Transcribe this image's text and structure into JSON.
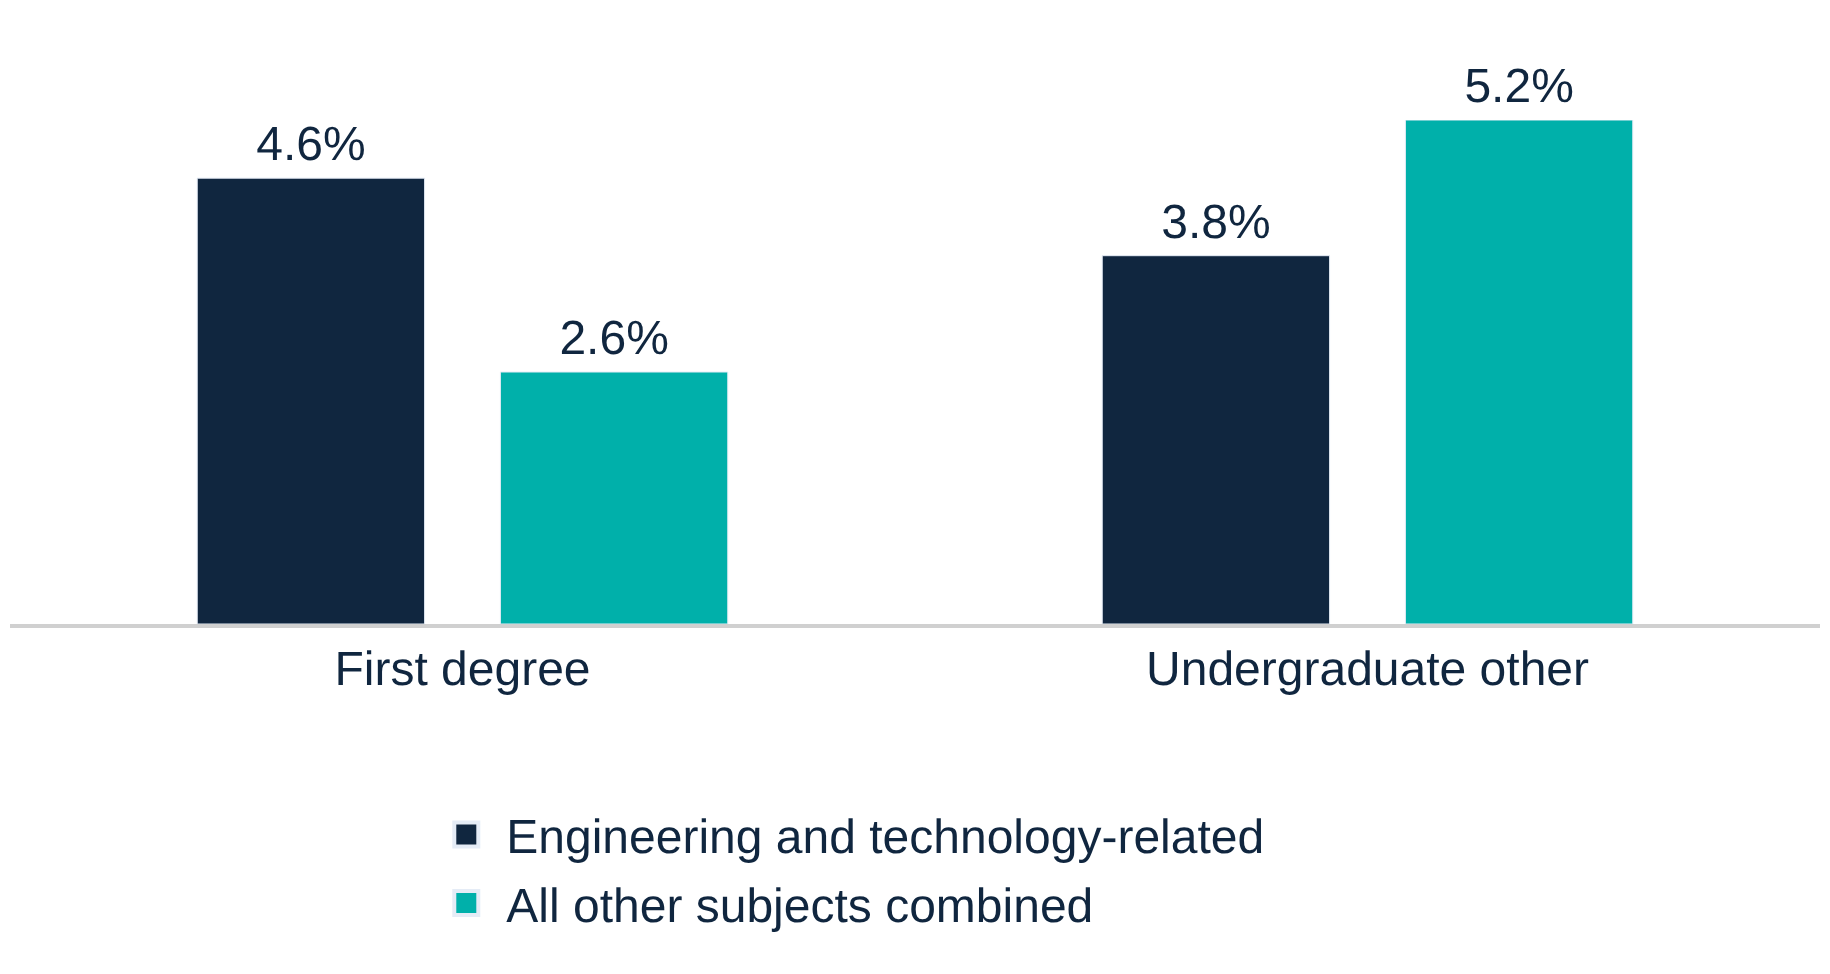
{
  "chart_data": {
    "type": "bar",
    "categories": [
      "First degree",
      "Undergraduate other"
    ],
    "series": [
      {
        "name": "Engineering and technology-related",
        "color": "#10263f",
        "values": [
          4.6,
          3.8
        ],
        "value_labels": [
          "4.6%",
          "3.8%"
        ]
      },
      {
        "name": "All other subjects combined",
        "color": "#00b0aa",
        "values": [
          2.6,
          5.2
        ],
        "value_labels": [
          "2.6%",
          "5.2%"
        ]
      }
    ],
    "legend": "bottom"
  }
}
